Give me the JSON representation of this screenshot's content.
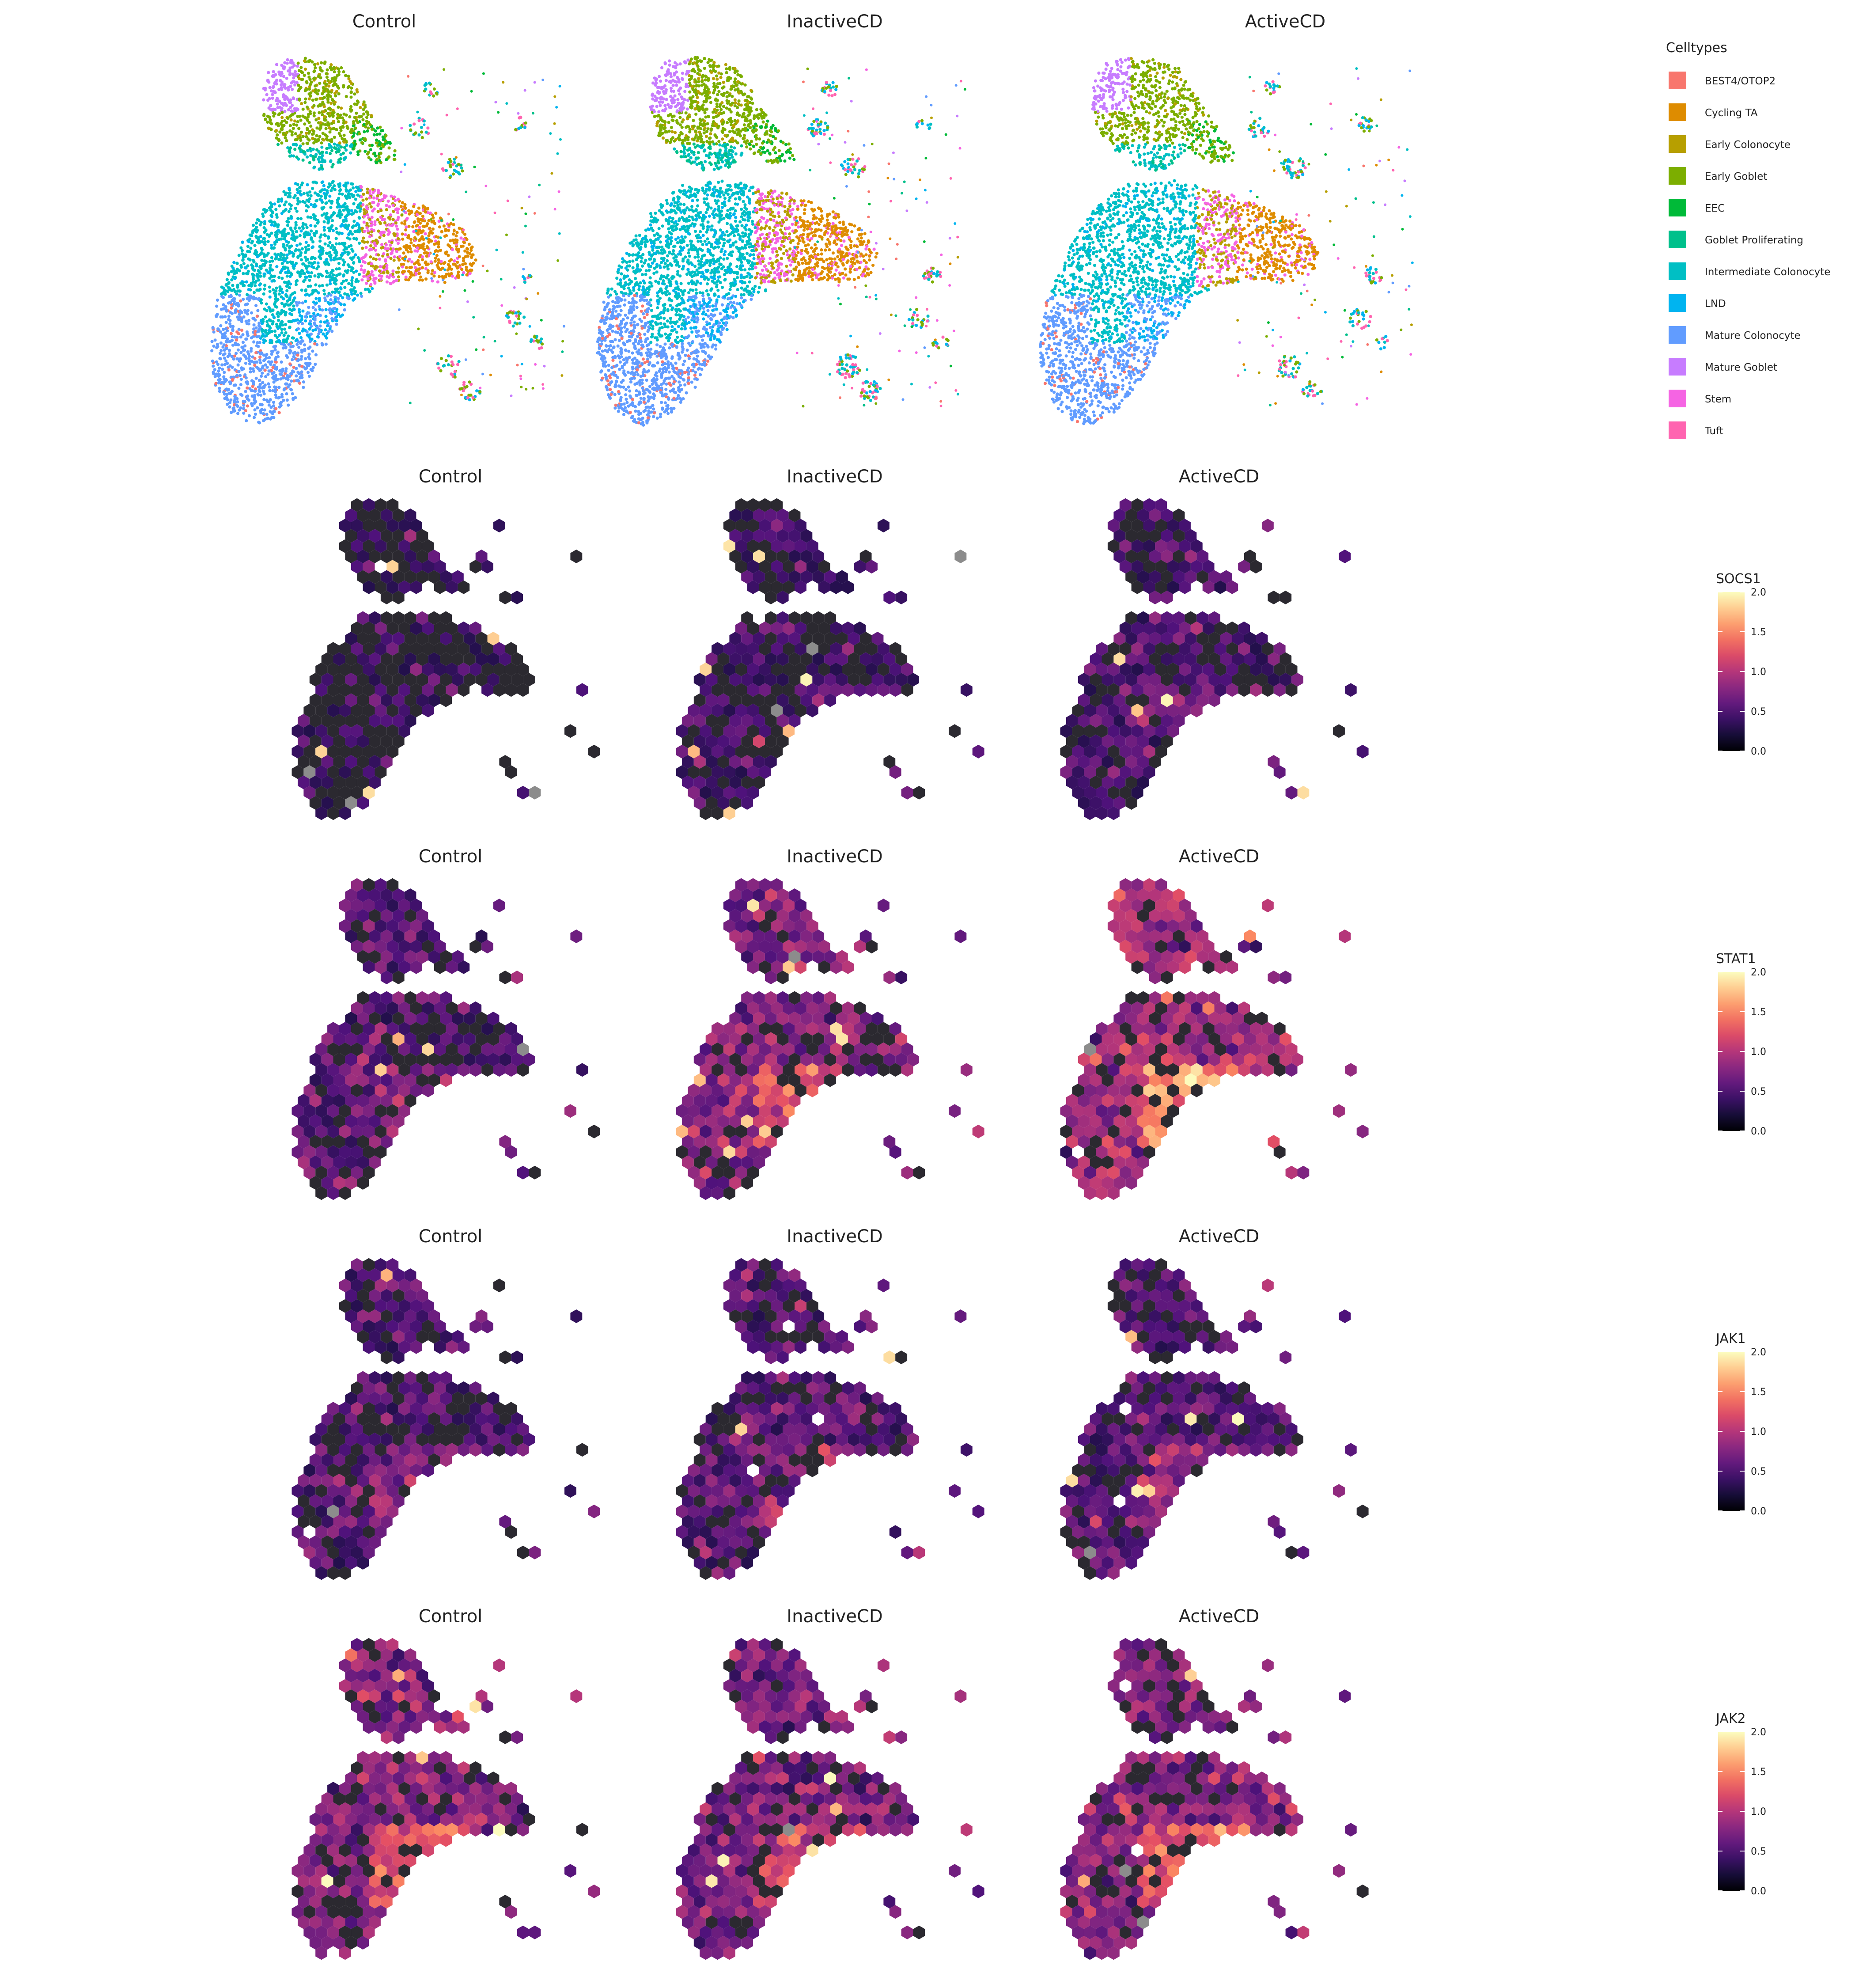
{
  "figure": {
    "colors": {
      "background": "#ffffff",
      "hex_empty": "#2b2930",
      "hex_na": "#8c8c8c",
      "viridis_magma": [
        "#000004",
        "#1c1044",
        "#4f127b",
        "#812581",
        "#b5367a",
        "#e55064",
        "#fb8761",
        "#fec287",
        "#fcfdbf"
      ]
    }
  },
  "chart_data": [
    {
      "type": "scatter",
      "subtype": "UMAP embedding colored by cell type",
      "panels": [
        "Control",
        "InactiveCD",
        "ActiveCD"
      ],
      "legend": {
        "title": "Celltypes",
        "position": "right",
        "entries": [
          {
            "label": "BEST4/OTOP2",
            "color": "#F8766D"
          },
          {
            "label": "Cycling TA",
            "color": "#DE8C00"
          },
          {
            "label": "Early Colonocyte",
            "color": "#B79F00"
          },
          {
            "label": "Early Goblet",
            "color": "#7CAE00"
          },
          {
            "label": "EEC",
            "color": "#00BA38"
          },
          {
            "label": "Goblet Proliferating",
            "color": "#00C08B"
          },
          {
            "label": "Intermediate Colonocyte",
            "color": "#00BFC4"
          },
          {
            "label": "LND",
            "color": "#00B4F0"
          },
          {
            "label": "Mature Colonocyte",
            "color": "#619CFF"
          },
          {
            "label": "Mature Goblet",
            "color": "#C77CFF"
          },
          {
            "label": "Stem",
            "color": "#F564E3"
          },
          {
            "label": "Tuft",
            "color": "#FF64B0"
          }
        ]
      },
      "grid": false,
      "axes": "none"
    },
    {
      "type": "heatmap",
      "subtype": "hexbin gene expression on UMAP",
      "gene": "SOCS1",
      "panels": [
        "Control",
        "InactiveCD",
        "ActiveCD"
      ],
      "mean_expression": [
        0.05,
        0.15,
        0.25
      ],
      "colorbar": {
        "title": "SOCS1",
        "ticks": [
          "0.0",
          "0.5",
          "1.0",
          "1.5",
          "2.0"
        ],
        "range": [
          0,
          2
        ]
      }
    },
    {
      "type": "heatmap",
      "subtype": "hexbin gene expression on UMAP",
      "gene": "STAT1",
      "panels": [
        "Control",
        "InactiveCD",
        "ActiveCD"
      ],
      "mean_expression": [
        0.35,
        0.6,
        0.75
      ],
      "colorbar": {
        "title": "STAT1",
        "ticks": [
          "0.0",
          "0.5",
          "1.0",
          "1.5",
          "2.0"
        ],
        "range": [
          0,
          2
        ]
      }
    },
    {
      "type": "heatmap",
      "subtype": "hexbin gene expression on UMAP",
      "gene": "JAK1",
      "panels": [
        "Control",
        "InactiveCD",
        "ActiveCD"
      ],
      "mean_expression": [
        0.3,
        0.35,
        0.35
      ],
      "colorbar": {
        "title": "JAK1",
        "ticks": [
          "0.0",
          "0.5",
          "1.0",
          "1.5",
          "2.0"
        ],
        "range": [
          0,
          2
        ]
      }
    },
    {
      "type": "heatmap",
      "subtype": "hexbin gene expression on UMAP",
      "gene": "JAK2",
      "panels": [
        "Control",
        "InactiveCD",
        "ActiveCD"
      ],
      "mean_expression": [
        0.6,
        0.55,
        0.6
      ],
      "colorbar": {
        "title": "JAK2",
        "ticks": [
          "0.0",
          "0.5",
          "1.0",
          "1.5",
          "2.0"
        ],
        "range": [
          0,
          2
        ]
      }
    }
  ]
}
